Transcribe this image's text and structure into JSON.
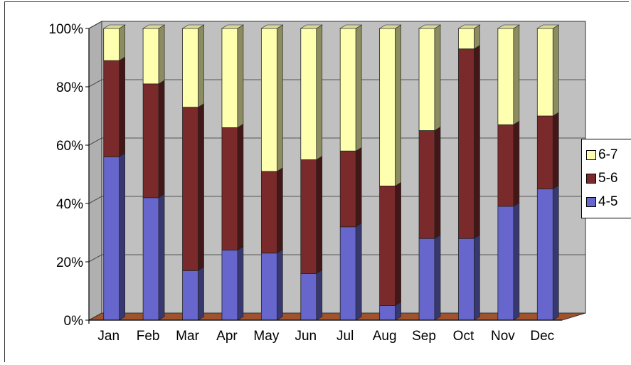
{
  "chart_data": {
    "type": "bar",
    "stacked": true,
    "percent": true,
    "categories": [
      "Jan",
      "Feb",
      "Mar",
      "Apr",
      "May",
      "Jun",
      "Jul",
      "Aug",
      "Sep",
      "Oct",
      "Nov",
      "Dec"
    ],
    "series": [
      {
        "name": "4-5",
        "color": "#6666cc",
        "values": [
          56,
          42,
          17,
          24,
          23,
          16,
          32,
          5,
          28,
          28,
          39,
          45
        ]
      },
      {
        "name": "5-6",
        "color": "#7a2a2a",
        "values": [
          33,
          39,
          56,
          42,
          28,
          39,
          26,
          41,
          37,
          65,
          28,
          25
        ]
      },
      {
        "name": "6-7",
        "color": "#ffffb0",
        "values": [
          11,
          19,
          27,
          34,
          49,
          45,
          42,
          54,
          35,
          7,
          33,
          30
        ]
      }
    ],
    "y_ticks": [
      "0%",
      "20%",
      "40%",
      "60%",
      "80%",
      "100%"
    ],
    "ylim": [
      0,
      100
    ],
    "grid": true,
    "legend_position": "right",
    "wall_color": "#c0c0c0",
    "floor_color": "#a0522d"
  },
  "legend": {
    "items": [
      {
        "label": "6-7",
        "color": "#ffffb0"
      },
      {
        "label": "5-6",
        "color": "#7a2a2a"
      },
      {
        "label": "4-5",
        "color": "#6666cc"
      }
    ]
  }
}
